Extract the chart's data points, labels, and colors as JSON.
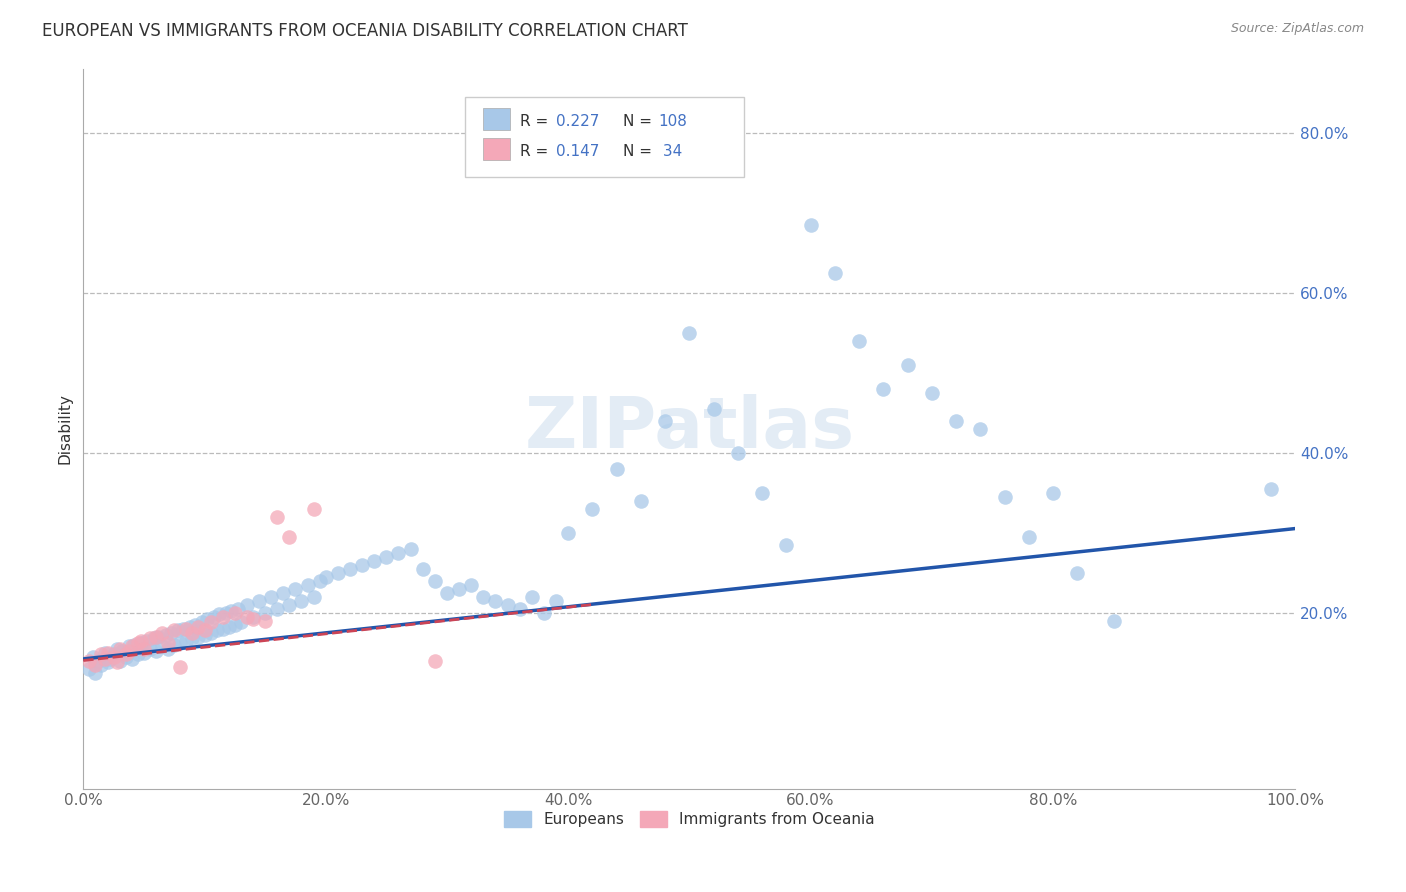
{
  "title": "EUROPEAN VS IMMIGRANTS FROM OCEANIA DISABILITY CORRELATION CHART",
  "source_text": "Source: ZipAtlas.com",
  "ylabel": "Disability",
  "xlim": [
    0.0,
    1.0
  ],
  "ylim": [
    -0.02,
    0.88
  ],
  "xtick_labels": [
    "0.0%",
    "20.0%",
    "40.0%",
    "60.0%",
    "80.0%",
    "100.0%"
  ],
  "xtick_values": [
    0.0,
    0.2,
    0.4,
    0.6,
    0.8,
    1.0
  ],
  "ytick_labels": [
    "20.0%",
    "40.0%",
    "60.0%",
    "80.0%"
  ],
  "ytick_values": [
    0.2,
    0.4,
    0.6,
    0.8
  ],
  "grid_color": "#bbbbbb",
  "blue_color": "#A8C8E8",
  "pink_color": "#F4A8B8",
  "blue_line_color": "#2255AA",
  "pink_line_color": "#CC4455",
  "tick_fontsize": 11,
  "ylabel_fontsize": 11,
  "title_fontsize": 12,
  "blue_scatter_x": [
    0.005,
    0.008,
    0.01,
    0.012,
    0.015,
    0.018,
    0.02,
    0.022,
    0.025,
    0.028,
    0.03,
    0.032,
    0.035,
    0.038,
    0.04,
    0.042,
    0.045,
    0.048,
    0.05,
    0.052,
    0.055,
    0.058,
    0.06,
    0.062,
    0.065,
    0.068,
    0.07,
    0.072,
    0.075,
    0.078,
    0.08,
    0.082,
    0.085,
    0.088,
    0.09,
    0.092,
    0.095,
    0.098,
    0.1,
    0.102,
    0.105,
    0.108,
    0.11,
    0.112,
    0.115,
    0.118,
    0.12,
    0.122,
    0.125,
    0.128,
    0.13,
    0.135,
    0.14,
    0.145,
    0.15,
    0.155,
    0.16,
    0.165,
    0.17,
    0.175,
    0.18,
    0.185,
    0.19,
    0.195,
    0.2,
    0.21,
    0.22,
    0.23,
    0.24,
    0.25,
    0.26,
    0.27,
    0.28,
    0.29,
    0.3,
    0.31,
    0.32,
    0.33,
    0.34,
    0.35,
    0.36,
    0.37,
    0.38,
    0.39,
    0.4,
    0.42,
    0.44,
    0.46,
    0.48,
    0.5,
    0.52,
    0.54,
    0.56,
    0.58,
    0.6,
    0.62,
    0.64,
    0.66,
    0.68,
    0.7,
    0.72,
    0.74,
    0.76,
    0.78,
    0.8,
    0.82,
    0.85,
    0.98
  ],
  "blue_scatter_y": [
    0.13,
    0.145,
    0.125,
    0.14,
    0.135,
    0.15,
    0.138,
    0.142,
    0.148,
    0.155,
    0.14,
    0.152,
    0.145,
    0.158,
    0.142,
    0.16,
    0.148,
    0.162,
    0.15,
    0.165,
    0.155,
    0.168,
    0.152,
    0.17,
    0.158,
    0.172,
    0.155,
    0.175,
    0.16,
    0.178,
    0.162,
    0.18,
    0.165,
    0.182,
    0.168,
    0.185,
    0.17,
    0.188,
    0.172,
    0.192,
    0.175,
    0.195,
    0.178,
    0.198,
    0.18,
    0.2,
    0.182,
    0.202,
    0.185,
    0.205,
    0.188,
    0.21,
    0.195,
    0.215,
    0.2,
    0.22,
    0.205,
    0.225,
    0.21,
    0.23,
    0.215,
    0.235,
    0.22,
    0.24,
    0.245,
    0.25,
    0.255,
    0.26,
    0.265,
    0.27,
    0.275,
    0.28,
    0.255,
    0.24,
    0.225,
    0.23,
    0.235,
    0.22,
    0.215,
    0.21,
    0.205,
    0.22,
    0.2,
    0.215,
    0.3,
    0.33,
    0.38,
    0.34,
    0.44,
    0.55,
    0.455,
    0.4,
    0.35,
    0.285,
    0.685,
    0.625,
    0.54,
    0.48,
    0.51,
    0.475,
    0.44,
    0.43,
    0.345,
    0.295,
    0.35,
    0.25,
    0.19,
    0.355
  ],
  "pink_scatter_x": [
    0.005,
    0.01,
    0.015,
    0.018,
    0.02,
    0.025,
    0.028,
    0.03,
    0.035,
    0.038,
    0.04,
    0.045,
    0.048,
    0.05,
    0.055,
    0.06,
    0.065,
    0.07,
    0.075,
    0.08,
    0.085,
    0.09,
    0.095,
    0.1,
    0.105,
    0.115,
    0.125,
    0.135,
    0.14,
    0.15,
    0.16,
    0.17,
    0.19,
    0.29
  ],
  "pink_scatter_y": [
    0.14,
    0.135,
    0.148,
    0.142,
    0.15,
    0.145,
    0.138,
    0.155,
    0.148,
    0.152,
    0.158,
    0.162,
    0.165,
    0.155,
    0.168,
    0.17,
    0.175,
    0.162,
    0.178,
    0.132,
    0.18,
    0.175,
    0.182,
    0.178,
    0.188,
    0.195,
    0.2,
    0.195,
    0.192,
    0.19,
    0.32,
    0.295,
    0.33,
    0.14
  ],
  "blue_line_x": [
    0.0,
    1.0
  ],
  "blue_line_y": [
    0.142,
    0.305
  ],
  "pink_line_x": [
    0.0,
    0.42
  ],
  "pink_line_y": [
    0.14,
    0.21
  ],
  "legend_items": [
    {
      "color": "#A8C8E8",
      "r": "R = 0.227",
      "n": "N = 108"
    },
    {
      "color": "#F4A8B8",
      "r": "R = 0.147",
      "n": "N =  34"
    }
  ],
  "bottom_legend": [
    {
      "color": "#A8C8E8",
      "label": "Europeans"
    },
    {
      "color": "#F4A8B8",
      "label": "Immigrants from Oceania"
    }
  ]
}
